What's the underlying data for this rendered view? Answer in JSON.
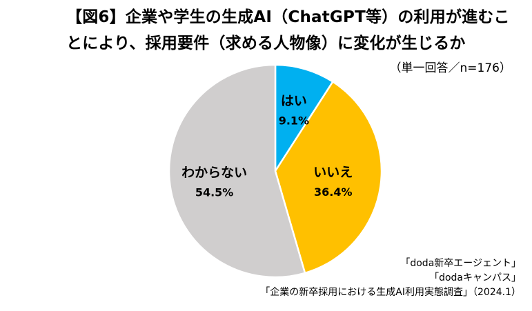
{
  "title": {
    "line1": "【図6】企業や学生の生成AI（ChatGPT等）の利用が進むこ",
    "line2": "とにより、採用要件（求める人物像）に変化が生じるか"
  },
  "note": "（単一回答／n=176）",
  "chart_data": {
    "type": "pie",
    "categories": [
      "はい",
      "いいえ",
      "わからない"
    ],
    "values": [
      9.1,
      36.4,
      54.5
    ],
    "value_labels": [
      "9.1%",
      "36.4%",
      "54.5%"
    ],
    "colors": [
      "#00B0F0",
      "#FFC000",
      "#D0CECE"
    ],
    "start": "12 o'clock",
    "direction": "clockwise"
  },
  "source": {
    "line1": "「doda新卒エージェント」",
    "line2": "「dodaキャンパス」",
    "line3": "「企業の新卒採用における生成AI利用実態調査」（2024.1）"
  }
}
